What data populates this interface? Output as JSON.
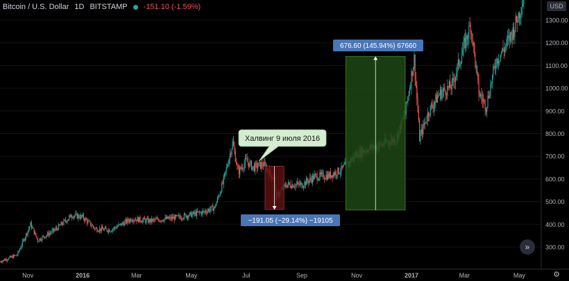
{
  "header": {
    "symbol": "Bitcoin / U.S. Dollar",
    "interval": "1D",
    "exchange": "BITSTAMP",
    "change": "-151.10 (-1.59%)",
    "currency": "USD"
  },
  "chart_data": {
    "type": "candlestick",
    "y_ticks": [
      "1300.00",
      "1200.00",
      "1100.00",
      "1000.00",
      "900.00",
      "800.00",
      "700.00",
      "600.00",
      "500.00",
      "400.00",
      "300.00"
    ],
    "x_ticks": [
      "Nov",
      "2016",
      "Mar",
      "May",
      "Jul",
      "Sep",
      "Nov",
      "2017",
      "Mar",
      "May"
    ],
    "ylim": [
      200,
      1400
    ],
    "date_range": [
      "2015-10-01",
      "2017-05-10"
    ],
    "price_path": [
      [
        "2015-10-01",
        236
      ],
      [
        "2015-10-20",
        265
      ],
      [
        "2015-11-04",
        400
      ],
      [
        "2015-11-12",
        330
      ],
      [
        "2015-12-01",
        375
      ],
      [
        "2015-12-20",
        440
      ],
      [
        "2016-01-01",
        432
      ],
      [
        "2016-01-15",
        380
      ],
      [
        "2016-02-01",
        375
      ],
      [
        "2016-02-25",
        425
      ],
      [
        "2016-03-15",
        415
      ],
      [
        "2016-04-15",
        430
      ],
      [
        "2016-05-15",
        455
      ],
      [
        "2016-05-27",
        475
      ],
      [
        "2016-06-05",
        580
      ],
      [
        "2016-06-16",
        760
      ],
      [
        "2016-06-22",
        630
      ],
      [
        "2016-07-01",
        680
      ],
      [
        "2016-07-09",
        650
      ],
      [
        "2016-07-20",
        665
      ],
      [
        "2016-08-01",
        600
      ],
      [
        "2016-08-03",
        520
      ],
      [
        "2016-08-15",
        575
      ],
      [
        "2016-09-01",
        575
      ],
      [
        "2016-09-15",
        610
      ],
      [
        "2016-10-01",
        615
      ],
      [
        "2016-10-15",
        640
      ],
      [
        "2016-11-01",
        710
      ],
      [
        "2016-11-15",
        735
      ],
      [
        "2016-12-01",
        755
      ],
      [
        "2016-12-15",
        780
      ],
      [
        "2016-12-25",
        890
      ],
      [
        "2017-01-04",
        1130
      ],
      [
        "2017-01-10",
        780
      ],
      [
        "2017-01-20",
        895
      ],
      [
        "2017-02-01",
        975
      ],
      [
        "2017-02-15",
        1010
      ],
      [
        "2017-03-01",
        1190
      ],
      [
        "2017-03-08",
        1280
      ],
      [
        "2017-03-17",
        980
      ],
      [
        "2017-03-25",
        920
      ],
      [
        "2017-04-05",
        1120
      ],
      [
        "2017-04-15",
        1180
      ],
      [
        "2017-04-25",
        1260
      ],
      [
        "2017-05-06",
        1400
      ]
    ],
    "measure_down": {
      "from": 656,
      "to": 465,
      "x_start": "2016-07-22",
      "x_end": "2016-08-12",
      "label": "−191.05 (−29.14%) −19105"
    },
    "measure_up": {
      "from": 463,
      "to": 1140,
      "x_start": "2016-10-20",
      "x_end": "2016-12-25",
      "label": "676.60 (145.94%) 67660"
    },
    "callout": {
      "text": "Халвинг 9 июля 2016",
      "x": "2016-07-09",
      "y": 660
    }
  },
  "icons": {
    "scroll_button": "double-chevron-right-icon",
    "settings": "gear-icon"
  },
  "colors": {
    "background": "#000000",
    "candle_up": "#26a69a",
    "candle_down": "#ef5350",
    "measure_down": "#5b0f0f",
    "measure_up": "#1f4715",
    "label": "#4a76b8"
  }
}
